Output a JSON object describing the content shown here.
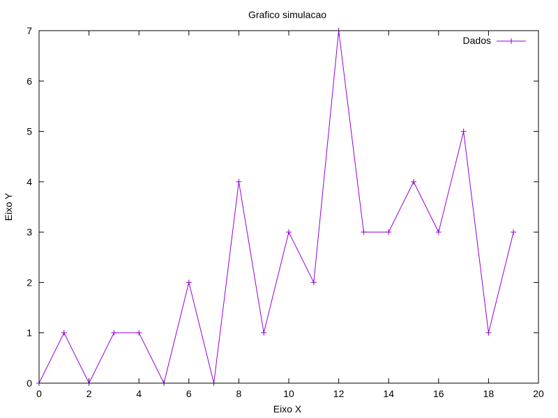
{
  "chart_data": {
    "type": "line",
    "title": "Grafico simulacao",
    "xlabel": "Eixo X",
    "ylabel": "Eixo Y",
    "xlim": [
      0,
      20
    ],
    "ylim": [
      0,
      7
    ],
    "xticks": [
      0,
      2,
      4,
      6,
      8,
      10,
      12,
      14,
      16,
      18,
      20
    ],
    "yticks": [
      0,
      1,
      2,
      3,
      4,
      5,
      6,
      7
    ],
    "grid": false,
    "legend_position": "top-right",
    "series": [
      {
        "name": "Dados",
        "color": "#9400d3",
        "marker": "plus",
        "x": [
          0,
          1,
          2,
          3,
          4,
          5,
          6,
          7,
          8,
          9,
          10,
          11,
          12,
          13,
          14,
          15,
          16,
          17,
          18,
          19
        ],
        "y": [
          0,
          1,
          0,
          1,
          1,
          0,
          2,
          0,
          4,
          1,
          3,
          2,
          7,
          3,
          3,
          4,
          3,
          5,
          1,
          3
        ]
      }
    ]
  }
}
